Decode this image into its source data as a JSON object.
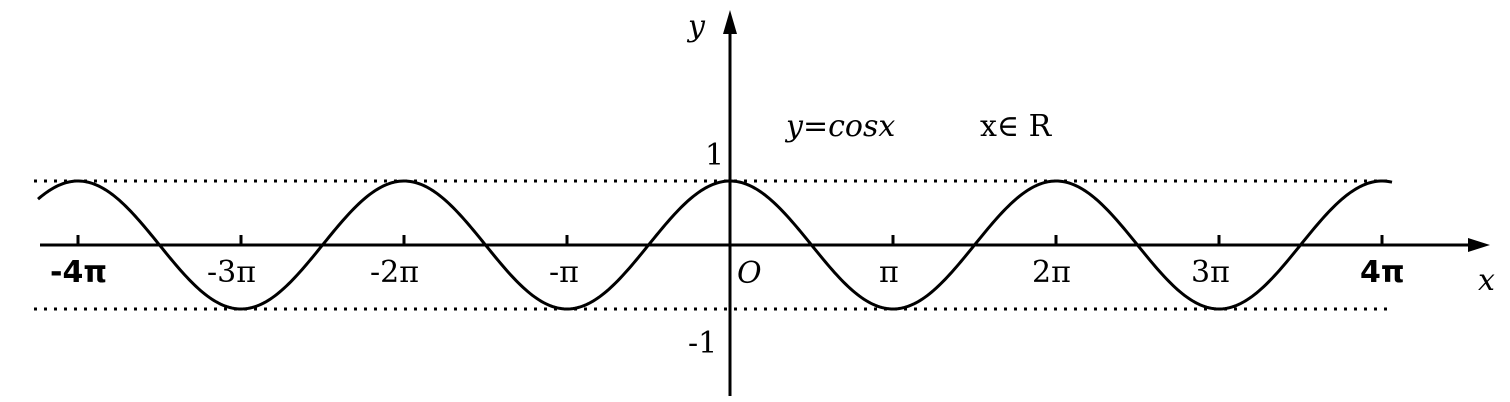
{
  "chart_data": {
    "type": "line",
    "function_label": "y=cosx",
    "domain_label": "x∈ R",
    "xlabel": "x",
    "ylabel": "y",
    "origin_label": "O",
    "x_unit": "π",
    "xlim": [
      -4,
      4
    ],
    "ylim": [
      -1,
      1
    ],
    "x_tick_values": [
      -4,
      -3,
      -2,
      -1,
      1,
      2,
      3,
      4
    ],
    "x_tick_labels": [
      "-4π",
      "-3π",
      "-2π",
      "-π",
      "π",
      "2π",
      "3π",
      "4π"
    ],
    "y_tick_values": [
      1,
      -1
    ],
    "y_tick_labels": [
      "1",
      "-1"
    ],
    "reference_lines": [
      1,
      -1
    ],
    "grid": false,
    "series": [
      {
        "function": "cos",
        "color": "#000000"
      }
    ]
  }
}
